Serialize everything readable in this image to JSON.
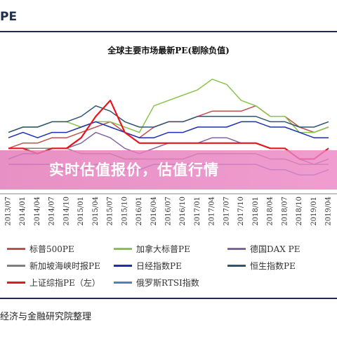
{
  "header": {
    "label": "PE"
  },
  "banner": {
    "text": "实时估值报价，估值行情"
  },
  "source": "经济与金融研究院整理",
  "chart_data": {
    "type": "line",
    "title": "全球主要市场最新PE(剔除负值)",
    "x": [
      "2013/07",
      "2014/01",
      "2014/04",
      "2014/07",
      "2014/10",
      "2015/01",
      "2015/04",
      "2015/07",
      "2015/10",
      "2016/01",
      "2016/04",
      "2016/07",
      "2016/10",
      "2017/01",
      "2017/04",
      "2017/07",
      "2017/10",
      "2018/01",
      "2018/04",
      "2018/07",
      "2018/10",
      "2019/01",
      "2019/04"
    ],
    "xlabel": "",
    "ylabel": "",
    "grid": false,
    "legend": "bottom",
    "series": [
      {
        "name": "标普500PE",
        "color": "#c0504d",
        "values": [
          16,
          17,
          17,
          18,
          18,
          19,
          20,
          21,
          19,
          18,
          20,
          21,
          21,
          22,
          23,
          23,
          23,
          24,
          22,
          22,
          20,
          19,
          20
        ]
      },
      {
        "name": "加拿大标普PE",
        "color": "#8bc34a",
        "values": [
          19,
          20,
          20,
          21,
          21,
          20,
          21,
          21,
          20,
          19,
          24,
          25,
          26,
          27,
          29,
          28,
          25,
          24,
          22,
          22,
          19,
          19,
          20
        ]
      },
      {
        "name": "德国DAX PE",
        "color": "#8064a2",
        "values": [
          14,
          15,
          15,
          16,
          16,
          17,
          19,
          18,
          16,
          15,
          16,
          17,
          17,
          17,
          18,
          18,
          17,
          17,
          16,
          16,
          14,
          13,
          14
        ]
      },
      {
        "name": "新加坡海峡时报PE",
        "color": "#7f7f7f",
        "values": [
          16,
          16,
          16,
          16,
          16,
          15,
          15,
          15,
          14,
          14,
          14,
          14,
          14,
          15,
          15,
          15,
          15,
          15,
          14,
          14,
          13,
          13,
          13
        ]
      },
      {
        "name": "日经指数PE",
        "color": "#1a2fb4",
        "values": [
          18,
          19,
          18,
          19,
          19,
          20,
          21,
          20,
          19,
          18,
          18,
          19,
          19,
          20,
          20,
          20,
          21,
          21,
          20,
          20,
          19,
          18,
          18
        ]
      },
      {
        "name": "恒生指数PE",
        "color": "#2e5573",
        "values": [
          19,
          20,
          20,
          21,
          21,
          22,
          24,
          23,
          21,
          20,
          20,
          21,
          21,
          22,
          22,
          22,
          22,
          22,
          21,
          21,
          20,
          20,
          21
        ]
      },
      {
        "name": "上证综指PE（左）",
        "color": "#e8151c",
        "values": [
          16,
          16,
          15,
          16,
          16,
          18,
          22,
          25,
          19,
          17,
          17,
          17,
          17,
          17,
          17,
          17,
          17,
          17,
          16,
          16,
          14,
          14,
          16
        ]
      },
      {
        "name": "俄罗斯RTSI指数",
        "color": "#4f81bd",
        "values": [
          13,
          13,
          13,
          13,
          12,
          12,
          13,
          13,
          12,
          12,
          13,
          13,
          13,
          13,
          13,
          13,
          13,
          13,
          12,
          12,
          11,
          11,
          12
        ]
      }
    ]
  }
}
